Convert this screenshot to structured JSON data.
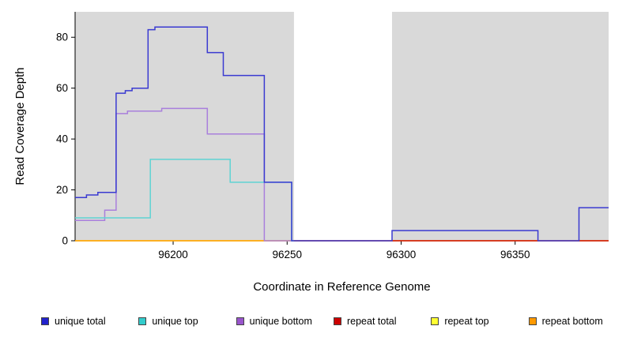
{
  "chart_data": {
    "type": "line",
    "subtype": "step",
    "title": "",
    "xlabel": "Coordinate in Reference Genome",
    "ylabel": "Read Coverage Depth",
    "xlim": [
      96157,
      96391
    ],
    "ylim": [
      0,
      90
    ],
    "xticks": [
      96200,
      96250,
      96300,
      96350
    ],
    "yticks": [
      0,
      20,
      40,
      60,
      80
    ],
    "grid": false,
    "panel_background": "#D9D9D9",
    "gap_region": [
      96253,
      96296
    ],
    "series": [
      {
        "name": "repeat top",
        "color": "#FFFF33",
        "step_points": [
          [
            96157,
            0
          ],
          [
            96391,
            0
          ]
        ]
      },
      {
        "name": "repeat bottom",
        "color": "#FF9900",
        "step_points": [
          [
            96157,
            0
          ],
          [
            96253,
            0
          ]
        ]
      },
      {
        "name": "repeat total",
        "color": "#CC0000",
        "step_points": [
          [
            96253,
            0
          ],
          [
            96391,
            0
          ]
        ]
      },
      {
        "name": "unique bottom",
        "color": "#A97FDC",
        "step_points": [
          [
            96157,
            8
          ],
          [
            96170,
            12
          ],
          [
            96175,
            50
          ],
          [
            96180,
            51
          ],
          [
            96195,
            52
          ],
          [
            96215,
            42
          ],
          [
            96240,
            0
          ],
          [
            96253,
            0
          ]
        ]
      },
      {
        "name": "unique top",
        "color": "#5FD3D3",
        "step_points": [
          [
            96157,
            9
          ],
          [
            96190,
            32
          ],
          [
            96225,
            23
          ],
          [
            96252,
            0
          ],
          [
            96253,
            0
          ]
        ]
      },
      {
        "name": "unique total",
        "color": "#3A3AD1",
        "step_points": [
          [
            96157,
            17
          ],
          [
            96162,
            18
          ],
          [
            96167,
            19
          ],
          [
            96175,
            58
          ],
          [
            96179,
            59
          ],
          [
            96182,
            60
          ],
          [
            96189,
            83
          ],
          [
            96192,
            84
          ],
          [
            96215,
            74
          ],
          [
            96222,
            65
          ],
          [
            96240,
            23
          ],
          [
            96252,
            0
          ],
          [
            96296,
            4
          ],
          [
            96360,
            0
          ],
          [
            96378,
            13
          ],
          [
            96391,
            13
          ]
        ]
      }
    ],
    "legend": {
      "position": "bottom",
      "items": [
        {
          "label": "unique total",
          "color": "#2222CC"
        },
        {
          "label": "unique top",
          "color": "#33CCCC"
        },
        {
          "label": "unique bottom",
          "color": "#9955CC"
        },
        {
          "label": "repeat total",
          "color": "#CC0000"
        },
        {
          "label": "repeat top",
          "color": "#FFFF33"
        },
        {
          "label": "repeat bottom",
          "color": "#FF9900"
        }
      ]
    }
  }
}
